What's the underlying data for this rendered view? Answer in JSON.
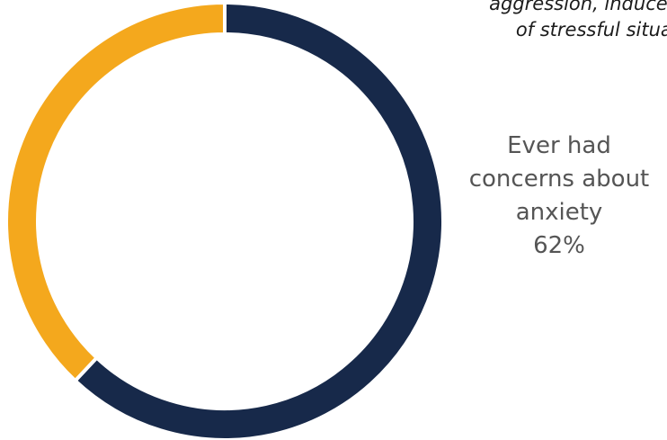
{
  "chart_data": {
    "type": "pie",
    "style": "donut",
    "slices": [
      {
        "label": "Ever had concerns about anxiety",
        "value": 62,
        "color": "#17294a"
      },
      {
        "label": "",
        "value": 38,
        "color": "#f4a81d"
      }
    ],
    "annotation": {
      "lines": [
        "aggression, induced",
        "of stressful situat"
      ]
    },
    "data_label": {
      "lines": [
        "Ever had",
        "concerns about",
        "anxiety",
        "62%"
      ]
    }
  }
}
